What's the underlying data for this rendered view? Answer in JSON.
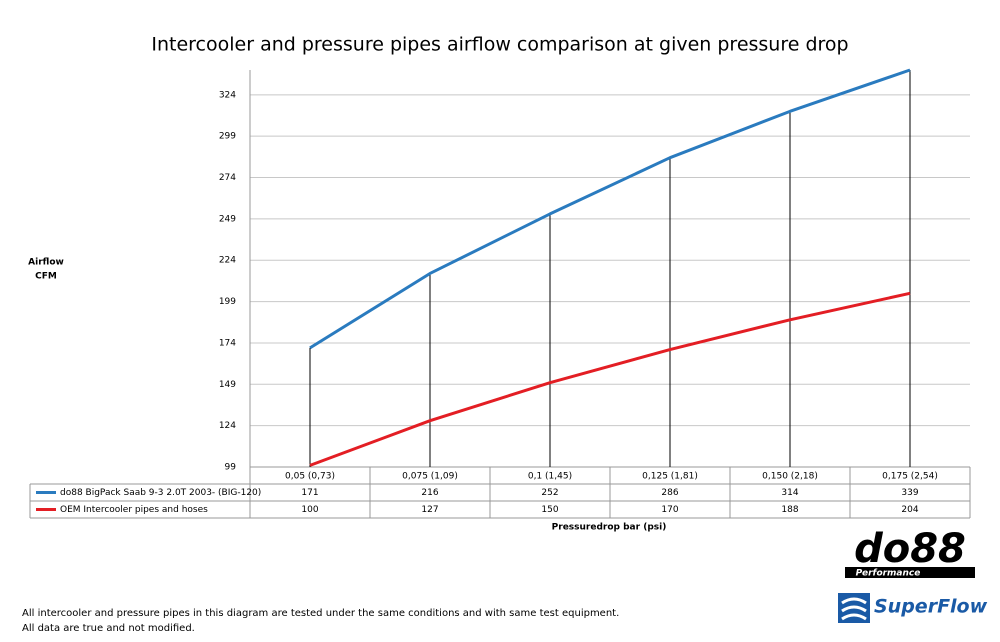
{
  "chart_data": {
    "type": "line",
    "title": "Intercooler and pressure pipes airflow comparison at given pressure drop",
    "ylabel_lines": [
      "Airflow",
      "CFM"
    ],
    "xlabel": "Pressuredrop bar (psi)",
    "categories": [
      "0,05 (0,73)",
      "0,075 (1,09)",
      "0,1 (1,45)",
      "0,125 (1,81)",
      "0,150 (2,18)",
      "0,175 (2,54)"
    ],
    "series": [
      {
        "name": "do88 BigPack Saab 9-3 2.0T 2003- (BIG-120)",
        "color": "#2a7bbf",
        "values": [
          171,
          216,
          252,
          286,
          314,
          339
        ]
      },
      {
        "name": "OEM Intercooler pipes and hoses",
        "color": "#e31e24",
        "values": [
          100,
          127,
          150,
          170,
          188,
          204
        ]
      }
    ],
    "ylim": [
      99,
      339
    ],
    "yticks": [
      99,
      124,
      149,
      174,
      199,
      224,
      249,
      274,
      299,
      324
    ],
    "grid": true,
    "drop_lines": true,
    "notes": [
      "All intercooler and pressure pipes in this diagram are tested under the same conditions and with same test equipment.",
      "All data are true and not modified."
    ],
    "logos": [
      "do88",
      "Performance",
      "SuperFlow"
    ]
  }
}
